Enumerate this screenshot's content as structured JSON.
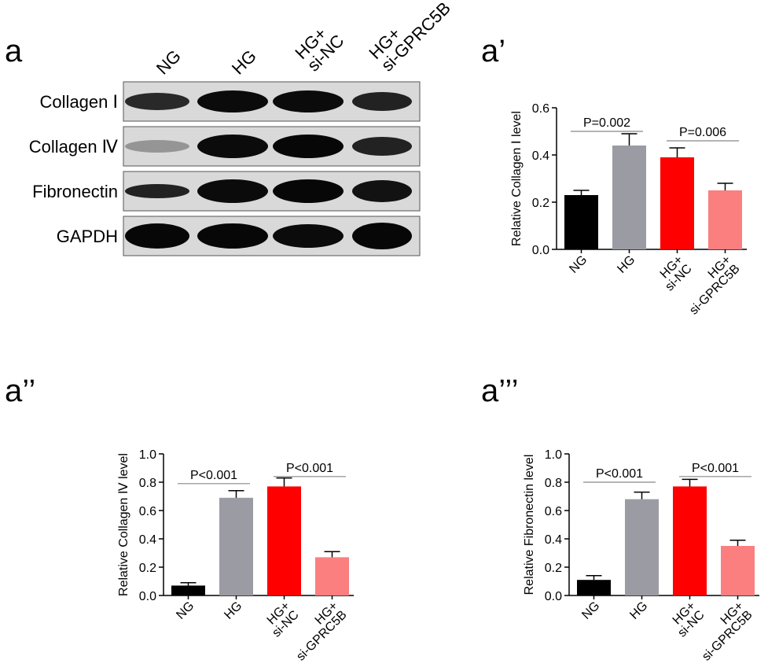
{
  "panel_labels": [
    "a",
    "a’",
    "a’’",
    "a’’’"
  ],
  "blot": {
    "lanes": [
      "NG",
      "HG",
      "HG+\nsi-NC",
      "HG+\nsi-GPRC5B"
    ],
    "rows": [
      {
        "label": "Collagen Ⅰ",
        "intensity": [
          0.82,
          0.95,
          0.95,
          0.85
        ],
        "thickness": [
          0.55,
          0.7,
          0.7,
          0.6
        ]
      },
      {
        "label": "Collagen Ⅳ",
        "intensity": [
          0.35,
          0.95,
          0.97,
          0.85
        ],
        "thickness": [
          0.4,
          0.75,
          0.75,
          0.6
        ]
      },
      {
        "label": "Fibronectin",
        "intensity": [
          0.85,
          0.95,
          0.97,
          0.92
        ],
        "thickness": [
          0.45,
          0.75,
          0.75,
          0.7
        ]
      },
      {
        "label": "GAPDH",
        "intensity": [
          0.97,
          0.97,
          0.95,
          0.97
        ],
        "thickness": [
          0.8,
          0.8,
          0.75,
          0.85
        ]
      }
    ]
  },
  "colors": {
    "NG": "#000000",
    "HG": "#9b9ba3",
    "HG+si-NC": "#ff0000",
    "HG+si-GPRC5B": "#fb7f7f"
  },
  "chart_data": [
    {
      "type": "bar",
      "panel": "a’",
      "ylabel": "Relative Collagen Ⅰ level",
      "categories": [
        "NG",
        "HG",
        "HG+\nsi-NC",
        "HG+\nsi-GPRC5B"
      ],
      "values": [
        0.23,
        0.44,
        0.39,
        0.25
      ],
      "errors": [
        0.02,
        0.05,
        0.04,
        0.03
      ],
      "ylim": [
        0,
        0.6
      ],
      "yticks": [
        "0.0",
        "0.2",
        "0.4",
        "0.6"
      ],
      "annotations": [
        {
          "text": "P=0.002",
          "from": 0,
          "to": 1,
          "y": 0.5
        },
        {
          "text": "P=0.006",
          "from": 2,
          "to": 3,
          "y": 0.46
        }
      ]
    },
    {
      "type": "bar",
      "panel": "a’’",
      "ylabel": "Relative Collagen Ⅳ level",
      "categories": [
        "NG",
        "HG",
        "HG+\nsi-NC",
        "HG+\nsi-GPRC5B"
      ],
      "values": [
        0.07,
        0.69,
        0.77,
        0.27
      ],
      "errors": [
        0.02,
        0.05,
        0.06,
        0.04
      ],
      "ylim": [
        0,
        1.0
      ],
      "yticks": [
        "0.0",
        "0.2",
        "0.4",
        "0.6",
        "0.8",
        "1.0"
      ],
      "annotations": [
        {
          "text": "P<0.001",
          "from": 0,
          "to": 1,
          "y": 0.79
        },
        {
          "text": "P<0.001",
          "from": 2,
          "to": 3,
          "y": 0.84
        }
      ]
    },
    {
      "type": "bar",
      "panel": "a’’’",
      "ylabel": "Relative Fibronectin level",
      "categories": [
        "NG",
        "HG",
        "HG+\nsi-NC",
        "HG+\nsi-GPRC5B"
      ],
      "values": [
        0.11,
        0.68,
        0.77,
        0.35
      ],
      "errors": [
        0.03,
        0.05,
        0.05,
        0.04
      ],
      "ylim": [
        0,
        1.0
      ],
      "yticks": [
        "0.0",
        "0.2",
        "0.4",
        "0.6",
        "0.8",
        "1.0"
      ],
      "annotations": [
        {
          "text": "P<0.001",
          "from": 0,
          "to": 1,
          "y": 0.8
        },
        {
          "text": "P<0.001",
          "from": 2,
          "to": 3,
          "y": 0.84
        }
      ]
    }
  ]
}
